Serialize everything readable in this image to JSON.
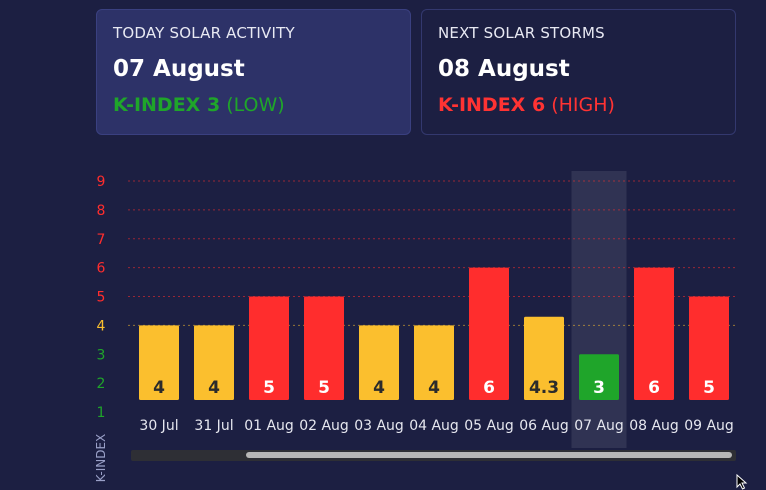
{
  "today": {
    "label": "TODAY SOLAR ACTIVITY",
    "date": "07 August",
    "kindex": "K-INDEX 3",
    "level": "(LOW)"
  },
  "next": {
    "label": "NEXT SOLAR STORMS",
    "date": "08 August",
    "kindex": "K-INDEX 6",
    "level": "(HIGH)"
  },
  "colors": {
    "low": "#1fa52a",
    "moderate": "#fbbf2e",
    "high": "#ff2d2d",
    "background": "#1c1f42"
  },
  "chart_data": {
    "type": "bar",
    "categories": [
      "30 Jul",
      "31 Jul",
      "01 Aug",
      "02 Aug",
      "03 Aug",
      "04 Aug",
      "05 Aug",
      "06 Aug",
      "07 Aug",
      "08 Aug",
      "09 Aug"
    ],
    "values": [
      4,
      4,
      5,
      5,
      4,
      4,
      6,
      4.3,
      3,
      6,
      5
    ],
    "labels": [
      "4",
      "4",
      "5",
      "5",
      "4",
      "4",
      "6",
      "4.3",
      "3",
      "6",
      "5"
    ],
    "bar_levels": [
      "moderate",
      "moderate",
      "high",
      "high",
      "moderate",
      "moderate",
      "high",
      "moderate",
      "low",
      "high",
      "high"
    ],
    "highlighted_category": "07 Aug",
    "yticks": [
      "1",
      "2",
      "3",
      "4",
      "5",
      "6",
      "7",
      "8",
      "9"
    ],
    "ylabel": "K-INDEX",
    "ylim": [
      1,
      9
    ],
    "grid": true
  }
}
